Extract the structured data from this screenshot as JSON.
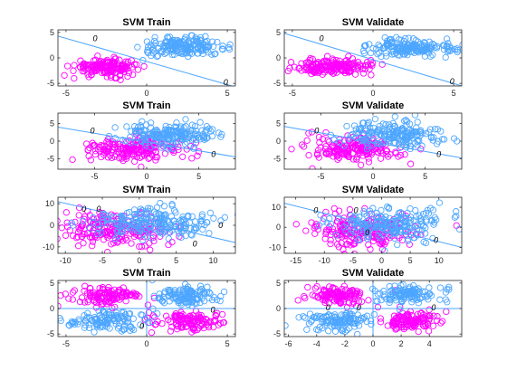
{
  "colors": {
    "class_a": "#FF00FF",
    "class_b": "#4DA6FF",
    "boundary": "#4DA6FF",
    "axes": "#262626"
  },
  "chart_data": [
    {
      "id": "r1c1",
      "type": "scatter",
      "title": "SVM Train",
      "xlim": [
        -5.5,
        5.5
      ],
      "ylim": [
        -5.5,
        5.5
      ],
      "xticks": [
        -5,
        0,
        5
      ],
      "yticks": [
        -5,
        0,
        5
      ],
      "boundary": [
        [
          -5.5,
          4.3
        ],
        [
          5.5,
          -5.7
        ]
      ],
      "contour_label": "0",
      "contour_label_at": [
        [
          -3.2,
          3.8
        ],
        [
          4.9,
          -4.8
        ]
      ],
      "clusters": [
        {
          "class": "a",
          "cx": -2.5,
          "cy": -1.8,
          "sx": 1.0,
          "sy": 0.8,
          "n": 170
        },
        {
          "class": "b",
          "cx": 2.3,
          "cy": 2.1,
          "sx": 1.3,
          "sy": 0.9,
          "n": 170
        }
      ]
    },
    {
      "id": "r1c2",
      "type": "scatter",
      "title": "SVM Validate",
      "xlim": [
        -5.5,
        5.5
      ],
      "ylim": [
        -5.5,
        5.5
      ],
      "xticks": [
        -5,
        0,
        5
      ],
      "yticks": [
        -5,
        0,
        5
      ],
      "boundary": [
        [
          -5.5,
          4.8
        ],
        [
          5.5,
          -5.5
        ]
      ],
      "contour_label": "0",
      "contour_label_at": [
        [
          -3.2,
          3.8
        ],
        [
          4.9,
          -4.6
        ]
      ],
      "clusters": [
        {
          "class": "a",
          "cx": -2.3,
          "cy": -1.8,
          "sx": 1.2,
          "sy": 0.8,
          "n": 170
        },
        {
          "class": "b",
          "cx": 2.4,
          "cy": 2.0,
          "sx": 1.3,
          "sy": 0.9,
          "n": 170
        }
      ]
    },
    {
      "id": "r2c1",
      "type": "scatter",
      "title": "SVM Train",
      "xlim": [
        -8.5,
        8.5
      ],
      "ylim": [
        -8,
        8
      ],
      "xticks": [
        -5,
        0,
        5
      ],
      "yticks": [
        -5,
        0,
        5
      ],
      "boundary": [
        [
          -8.5,
          4.0
        ],
        [
          8.5,
          -4.5
        ]
      ],
      "contour_label": "0",
      "contour_label_at": [
        [
          -5.2,
          3.0
        ],
        [
          6.4,
          -3.7
        ]
      ],
      "clusters": [
        {
          "class": "a",
          "cx": -1.5,
          "cy": -2.5,
          "sx": 2.2,
          "sy": 1.7,
          "n": 190
        },
        {
          "class": "b",
          "cx": 2.0,
          "cy": 1.8,
          "sx": 2.4,
          "sy": 1.8,
          "n": 190
        }
      ]
    },
    {
      "id": "r2c2",
      "type": "scatter",
      "title": "SVM Validate",
      "xlim": [
        -8.5,
        8.5
      ],
      "ylim": [
        -8,
        8
      ],
      "xticks": [
        -5,
        0,
        5
      ],
      "yticks": [
        -5,
        0,
        5
      ],
      "boundary": [
        [
          -8.5,
          4.2
        ],
        [
          8.5,
          -4.8
        ]
      ],
      "contour_label": "0",
      "contour_label_at": [
        [
          -5.4,
          3.0
        ],
        [
          6.3,
          -3.8
        ]
      ],
      "clusters": [
        {
          "class": "a",
          "cx": -1.8,
          "cy": -2.2,
          "sx": 2.2,
          "sy": 1.8,
          "n": 190
        },
        {
          "class": "b",
          "cx": 2.2,
          "cy": 2.0,
          "sx": 2.4,
          "sy": 1.9,
          "n": 190
        }
      ]
    },
    {
      "id": "r3c1",
      "type": "scatter",
      "title": "SVM Train",
      "xlim": [
        -11,
        13
      ],
      "ylim": [
        -13,
        13
      ],
      "xticks": [
        -10,
        -5,
        0,
        5,
        10
      ],
      "yticks": [
        -10,
        0,
        10
      ],
      "boundary": [
        [
          -11,
          11
        ],
        [
          13,
          -8
        ]
      ],
      "contour_label": "0",
      "contour_label_at": [
        [
          -7.5,
          7.5
        ],
        [
          -5.5,
          7.5
        ],
        [
          7.5,
          -8.5
        ],
        [
          11,
          0
        ]
      ],
      "clusters": [
        {
          "class": "a",
          "cx": -3.0,
          "cy": -2.0,
          "sx": 3.8,
          "sy": 4.0,
          "n": 200
        },
        {
          "class": "b",
          "cx": 1.5,
          "cy": 1.0,
          "sx": 4.5,
          "sy": 3.8,
          "n": 200
        }
      ]
    },
    {
      "id": "r3c2",
      "type": "scatter",
      "title": "SVM Validate",
      "xlim": [
        -17,
        14
      ],
      "ylim": [
        -13,
        15
      ],
      "xticks": [
        -15,
        -10,
        -5,
        0,
        5,
        10
      ],
      "yticks": [
        -10,
        0,
        10
      ],
      "boundary": [
        [
          -17,
          12
        ],
        [
          14,
          -10
        ]
      ],
      "contour_label": "0",
      "contour_label_at": [
        [
          -11.5,
          8.5
        ],
        [
          -4.5,
          8.5
        ],
        [
          9.5,
          -6.5
        ],
        [
          -2.5,
          -2.5
        ]
      ],
      "clusters": [
        {
          "class": "a",
          "cx": -4.0,
          "cy": -1.5,
          "sx": 4.5,
          "sy": 4.2,
          "n": 200
        },
        {
          "class": "b",
          "cx": 1.5,
          "cy": 1.5,
          "sx": 5.0,
          "sy": 3.8,
          "n": 200
        }
      ]
    },
    {
      "id": "r4c1",
      "type": "scatter",
      "title": "SVM Train",
      "xlim": [
        -5.5,
        5.5
      ],
      "ylim": [
        -5.5,
        5.5
      ],
      "xticks": [
        -5,
        0,
        5
      ],
      "yticks": [
        -5,
        0,
        5
      ],
      "boundary_h": 0,
      "boundary_v": 0,
      "contour_label": "0",
      "contour_label_at": [
        [
          4.1,
          -0.3
        ],
        [
          -0.3,
          -3.5
        ]
      ],
      "clusters": [
        {
          "class": "a",
          "cx": -2.5,
          "cy": 2.5,
          "sx": 1.1,
          "sy": 0.9,
          "n": 120
        },
        {
          "class": "a",
          "cx": 2.5,
          "cy": -2.5,
          "sx": 1.1,
          "sy": 0.9,
          "n": 120
        },
        {
          "class": "b",
          "cx": 2.5,
          "cy": 2.5,
          "sx": 1.1,
          "sy": 0.9,
          "n": 120
        },
        {
          "class": "b",
          "cx": -2.5,
          "cy": -2.5,
          "sx": 1.1,
          "sy": 0.9,
          "n": 120
        }
      ]
    },
    {
      "id": "r4c2",
      "type": "scatter",
      "title": "SVM Validate",
      "xlim": [
        -6.3,
        6.3
      ],
      "ylim": [
        -5.5,
        5.5
      ],
      "xticks": [
        -6,
        -4,
        -2,
        0,
        2,
        4
      ],
      "yticks": [
        -5,
        0,
        5
      ],
      "boundary_h": 0,
      "boundary_v": 0,
      "contour_label": "0",
      "contour_label_at": [
        [
          -3.2,
          0.2
        ],
        [
          -1.0,
          0.2
        ],
        [
          4.3,
          0.2
        ]
      ],
      "clusters": [
        {
          "class": "a",
          "cx": -2.5,
          "cy": 2.5,
          "sx": 1.1,
          "sy": 0.9,
          "n": 120
        },
        {
          "class": "a",
          "cx": 2.5,
          "cy": -2.5,
          "sx": 1.1,
          "sy": 0.9,
          "n": 120
        },
        {
          "class": "b",
          "cx": 2.5,
          "cy": 2.5,
          "sx": 1.1,
          "sy": 0.9,
          "n": 120
        },
        {
          "class": "b",
          "cx": -2.5,
          "cy": -2.5,
          "sx": 1.1,
          "sy": 0.9,
          "n": 120
        }
      ]
    }
  ]
}
